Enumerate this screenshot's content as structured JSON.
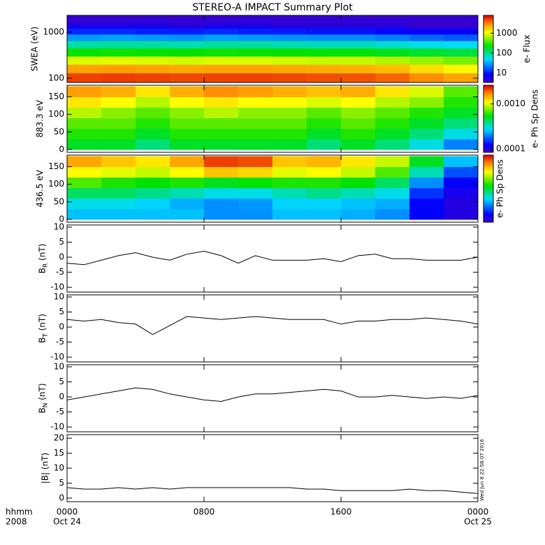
{
  "title": "STEREO-A IMPACT Summary Plot",
  "timestamp": "Wed Jun  8 22:58:07 2016",
  "x_axis": {
    "xlim": [
      0,
      24
    ],
    "xticks": [
      {
        "value": 0,
        "label": "0000"
      },
      {
        "value": 8,
        "label": "0800"
      },
      {
        "value": 16,
        "label": "1600"
      },
      {
        "value": 24,
        "label": "0000"
      }
    ],
    "date_ticks": [
      {
        "value": 0,
        "label": "Oct 24"
      },
      {
        "value": 24,
        "label": "Oct 25"
      }
    ],
    "unit_label": "hhmm",
    "year_label": "2008"
  },
  "chart_data": [
    {
      "type": "heatmap",
      "ylabel": "SWEA (eV)",
      "ylog": true,
      "ylim": [
        81,
        2310
      ],
      "yticks": [
        100,
        1000
      ],
      "xbins": [
        0,
        2,
        4,
        6,
        8,
        10,
        12,
        14,
        16,
        18,
        20,
        22,
        24
      ],
      "ybins": [
        81,
        130,
        200,
        300,
        450,
        650,
        900,
        1200,
        1600,
        2310
      ],
      "z": [
        [
          5000,
          5200,
          5000,
          4800,
          5000,
          5000,
          4800,
          4600,
          4500,
          4000,
          3000,
          2500
        ],
        [
          2500,
          2600,
          2500,
          2400,
          2500,
          2500,
          2400,
          2300,
          2200,
          2000,
          1500,
          1200
        ],
        [
          900,
          950,
          900,
          850,
          900,
          900,
          850,
          800,
          800,
          700,
          600,
          500
        ],
        [
          250,
          260,
          250,
          240,
          260,
          250,
          240,
          230,
          230,
          200,
          180,
          160
        ],
        [
          90,
          95,
          90,
          85,
          95,
          90,
          85,
          80,
          80,
          70,
          60,
          55
        ],
        [
          30,
          32,
          30,
          28,
          32,
          30,
          28,
          27,
          27,
          24,
          20,
          18
        ],
        [
          12,
          12,
          11,
          11,
          12,
          11,
          11,
          10,
          10,
          9,
          8,
          8
        ],
        [
          6,
          6,
          6,
          5,
          6,
          6,
          5,
          5,
          5,
          5,
          4,
          4
        ],
        [
          4,
          4,
          4,
          4,
          4,
          4,
          4,
          4,
          4,
          4,
          4,
          4
        ]
      ],
      "clim": [
        3.4,
        7800
      ],
      "clog": true,
      "cticks": [
        10,
        100,
        1000
      ],
      "clabel": "e- Flux"
    },
    {
      "type": "heatmap",
      "ylabel": "883.3 eV",
      "ylog": false,
      "ylim": [
        -8,
        183
      ],
      "yticks": [
        0,
        50,
        100,
        150
      ],
      "xbins": [
        0,
        2,
        4,
        6,
        8,
        10,
        12,
        14,
        16,
        18,
        20,
        22,
        24
      ],
      "ybins": [
        0,
        30,
        60,
        90,
        120,
        150,
        180
      ],
      "z": [
        [
          0.0005,
          0.0005,
          0.0004,
          0.0005,
          0.0005,
          0.0005,
          0.0005,
          0.0004,
          0.0005,
          0.0004,
          0.0003,
          0.0002
        ],
        [
          0.0006,
          0.0006,
          0.0005,
          0.0006,
          0.0006,
          0.0006,
          0.0006,
          0.0005,
          0.0006,
          0.0005,
          0.0004,
          0.0003
        ],
        [
          0.0007,
          0.0007,
          0.0006,
          0.0007,
          0.0007,
          0.0007,
          0.0007,
          0.0006,
          0.0007,
          0.0006,
          0.0005,
          0.0004
        ],
        [
          0.0009,
          0.0008,
          0.0007,
          0.0008,
          0.0009,
          0.0008,
          0.0008,
          0.0007,
          0.0008,
          0.0007,
          0.0006,
          0.0005
        ],
        [
          0.0012,
          0.0011,
          0.0009,
          0.0011,
          0.0012,
          0.0011,
          0.0011,
          0.001,
          0.0011,
          0.0009,
          0.0008,
          0.0006
        ],
        [
          0.0016,
          0.0015,
          0.0012,
          0.0015,
          0.0017,
          0.0016,
          0.0015,
          0.0014,
          0.0015,
          0.0012,
          0.001,
          0.0007
        ]
      ],
      "clim": [
        8.3e-05,
        0.0026
      ],
      "clog": true,
      "cticks": [
        {
          "value": 0.001,
          "label": "0.0010"
        },
        {
          "value": 0.0001,
          "label": "0.0001"
        }
      ],
      "clabel": "e- Ph Sp Dens"
    },
    {
      "type": "heatmap",
      "ylabel": "436.5 eV",
      "ylog": false,
      "ylim": [
        -8,
        183
      ],
      "yticks": [
        0,
        50,
        100,
        150
      ],
      "xbins": [
        0,
        2,
        4,
        6,
        8,
        10,
        12,
        14,
        16,
        18,
        20,
        22,
        24
      ],
      "ybins": [
        0,
        30,
        60,
        90,
        120,
        150,
        180
      ],
      "z": [
        [
          0.003,
          0.003,
          0.003,
          0.003,
          0.0025,
          0.0025,
          0.003,
          0.003,
          0.0028,
          0.0025,
          0.0015,
          0.0012
        ],
        [
          0.0035,
          0.0035,
          0.0032,
          0.0028,
          0.0025,
          0.0026,
          0.0032,
          0.0032,
          0.003,
          0.0028,
          0.0015,
          0.0012
        ],
        [
          0.005,
          0.005,
          0.0045,
          0.004,
          0.0035,
          0.0035,
          0.004,
          0.0045,
          0.004,
          0.0035,
          0.0018,
          0.0013
        ],
        [
          0.008,
          0.007,
          0.0065,
          0.007,
          0.006,
          0.0065,
          0.007,
          0.007,
          0.0065,
          0.005,
          0.0025,
          0.0015
        ],
        [
          0.013,
          0.012,
          0.011,
          0.013,
          0.016,
          0.015,
          0.012,
          0.013,
          0.011,
          0.008,
          0.004,
          0.002
        ],
        [
          0.018,
          0.016,
          0.014,
          0.018,
          0.025,
          0.024,
          0.016,
          0.017,
          0.014,
          0.011,
          0.006,
          0.003
        ]
      ],
      "clim": [
        0.001,
        0.03
      ],
      "clog": true,
      "cticks": [],
      "clabel": "e- Ph Sp Dens"
    },
    {
      "type": "line",
      "ylabel": "B",
      "ylabel_sub": "R",
      "ylabel_unit": "(nT)",
      "ylim": [
        -11.6,
        10.7
      ],
      "yticks": [
        -10,
        -5,
        0,
        5,
        10
      ],
      "x": [
        0,
        1,
        2,
        3,
        4,
        5,
        6,
        7,
        8,
        9,
        10,
        11,
        12,
        13,
        14,
        15,
        16,
        17,
        18,
        19,
        20,
        21,
        22,
        23,
        24
      ],
      "values": [
        -2,
        -2.5,
        -1,
        0.5,
        1.5,
        0,
        -1,
        1,
        2,
        0.5,
        -2,
        0.5,
        -1,
        -1,
        -1,
        -0.5,
        -1.5,
        0.5,
        1,
        -0.5,
        -0.5,
        -1,
        -1,
        -1,
        0
      ],
      "color": "#000000"
    },
    {
      "type": "line",
      "ylabel": "B",
      "ylabel_sub": "T",
      "ylabel_unit": "(nT)",
      "ylim": [
        -11.6,
        10.7
      ],
      "yticks": [
        -10,
        -5,
        0,
        5,
        10
      ],
      "x": [
        0,
        1,
        2,
        3,
        4,
        5,
        6,
        7,
        8,
        9,
        10,
        11,
        12,
        13,
        14,
        15,
        16,
        17,
        18,
        19,
        20,
        21,
        22,
        23,
        24
      ],
      "values": [
        2.5,
        2,
        2.5,
        1.5,
        1,
        -2.5,
        0.5,
        3.5,
        3,
        2.5,
        3,
        3.5,
        3,
        2.5,
        2.5,
        2.5,
        1,
        2,
        2,
        2.5,
        2.5,
        3,
        2.5,
        2,
        1
      ],
      "color": "#000000"
    },
    {
      "type": "line",
      "ylabel": "B",
      "ylabel_sub": "N",
      "ylabel_unit": "(nT)",
      "ylim": [
        -11.6,
        10.7
      ],
      "yticks": [
        -10,
        -5,
        0,
        5,
        10
      ],
      "x": [
        0,
        1,
        2,
        3,
        4,
        5,
        6,
        7,
        8,
        9,
        10,
        11,
        12,
        13,
        14,
        15,
        16,
        17,
        18,
        19,
        20,
        21,
        22,
        23,
        24
      ],
      "values": [
        -1,
        0,
        1,
        2,
        3,
        2.5,
        1,
        0,
        -1,
        -1.5,
        0,
        1,
        1,
        1.5,
        2,
        2.5,
        2,
        0,
        0,
        0.5,
        0,
        -0.5,
        0,
        -0.5,
        0.5
      ],
      "color": "#000000"
    },
    {
      "type": "line",
      "ylabel": "|B| (nT)",
      "ylim": [
        -1.2,
        21.2
      ],
      "yticks": [
        0,
        5,
        10,
        15,
        20
      ],
      "x": [
        0,
        1,
        2,
        3,
        4,
        5,
        6,
        7,
        8,
        9,
        10,
        11,
        12,
        13,
        14,
        15,
        16,
        17,
        18,
        19,
        20,
        21,
        22,
        23,
        24
      ],
      "values": [
        3.5,
        3,
        3,
        3.5,
        3,
        3.5,
        3,
        3.5,
        3.5,
        3.5,
        3.5,
        3.5,
        3.5,
        3.5,
        3,
        3,
        2.5,
        2.5,
        2.5,
        2.5,
        3,
        2.5,
        2.5,
        2,
        1.5
      ],
      "color": "#000000"
    }
  ]
}
